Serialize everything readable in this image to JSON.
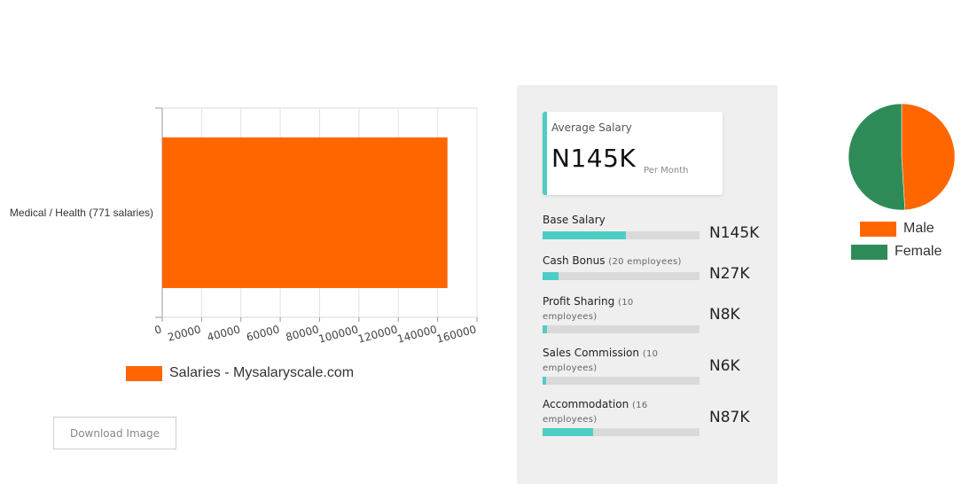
{
  "chart_data": [
    {
      "type": "bar",
      "orientation": "horizontal",
      "categories": [
        "Medical / Health (771 salaries)"
      ],
      "series": [
        {
          "name": "Salaries - Mysalaryscale.com",
          "values": [
            145000
          ]
        }
      ],
      "xlim": [
        0,
        160000
      ],
      "xticks": [
        "0",
        "20000",
        "40000",
        "60000",
        "80000",
        "100000",
        "120000",
        "140000",
        "160000"
      ],
      "grid": true,
      "legend_position": "bottom-left",
      "color": "#ff6600"
    },
    {
      "type": "pie",
      "labels": [
        "Male",
        "Female"
      ],
      "values": [
        49,
        51
      ],
      "colors": [
        "#ff6600",
        "#2e8b57"
      ],
      "legend_position": "bottom"
    }
  ],
  "download_button": "Download Image",
  "summary": {
    "avg_title": "Average Salary",
    "avg_value": "N145K",
    "avg_unit": "Per Month",
    "accent_color": "#4ecdc4",
    "items": [
      {
        "label": "Base Salary",
        "sub": "",
        "value": "N145K",
        "fraction": 0.53
      },
      {
        "label": "Cash Bonus",
        "sub": "(20 employees)",
        "value": "N27K",
        "fraction": 0.1
      },
      {
        "label": "Profit Sharing",
        "sub": "(10 employees)",
        "value": "N8K",
        "fraction": 0.03
      },
      {
        "label": "Sales Commission",
        "sub": "(10 employees)",
        "value": "N6K",
        "fraction": 0.02
      },
      {
        "label": "Accommodation",
        "sub": "(16 employees)",
        "value": "N87K",
        "fraction": 0.32
      }
    ]
  }
}
